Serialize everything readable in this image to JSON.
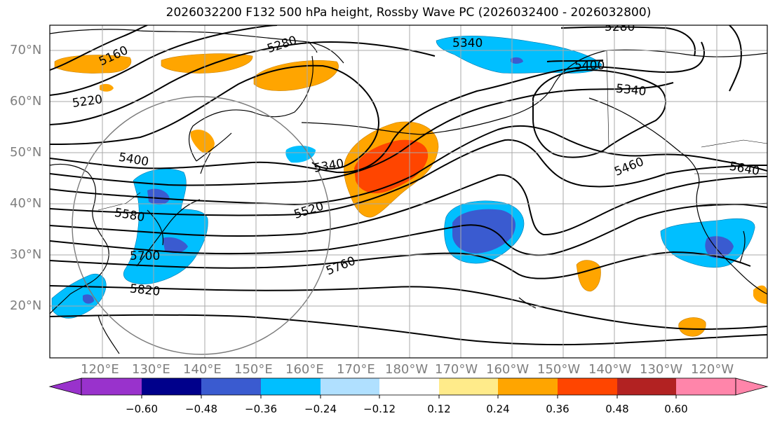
{
  "title": "2026032200 F132 500 hPa height, Rossby Wave PC (2026032400 - 2026032800)",
  "lat_labels": [
    "70°N",
    "60°N",
    "50°N",
    "40°N",
    "30°N",
    "20°N"
  ],
  "lon_labels": [
    "120°E",
    "130°E",
    "140°E",
    "150°E",
    "160°E",
    "170°E",
    "180°W",
    "170°W",
    "160°W",
    "150°W",
    "140°W",
    "130°W",
    "120°W"
  ],
  "contour_labels": [
    "5160",
    "5220",
    "5280",
    "5280",
    "5340",
    "5340",
    "5400",
    "5340",
    "5400",
    "5460",
    "5640",
    "5520",
    "5580",
    "5700",
    "5760",
    "5820"
  ],
  "colorbar": {
    "colors": [
      "#9932cc",
      "#00008b",
      "#3a5bd0",
      "#00bfff",
      "#b0e0ff",
      "#ffffff",
      "#ffeb8a",
      "#ffa500",
      "#ff4500",
      "#b22222",
      "#ff85aa"
    ],
    "tick_labels": [
      "−0.60",
      "−0.48",
      "−0.36",
      "−0.24",
      "−0.12",
      "0.12",
      "0.24",
      "0.36",
      "0.48",
      "0.60"
    ]
  },
  "colors": {
    "axis_label": "#7f7f7f",
    "grid": "#a9a9a9",
    "contour": "#000000"
  }
}
